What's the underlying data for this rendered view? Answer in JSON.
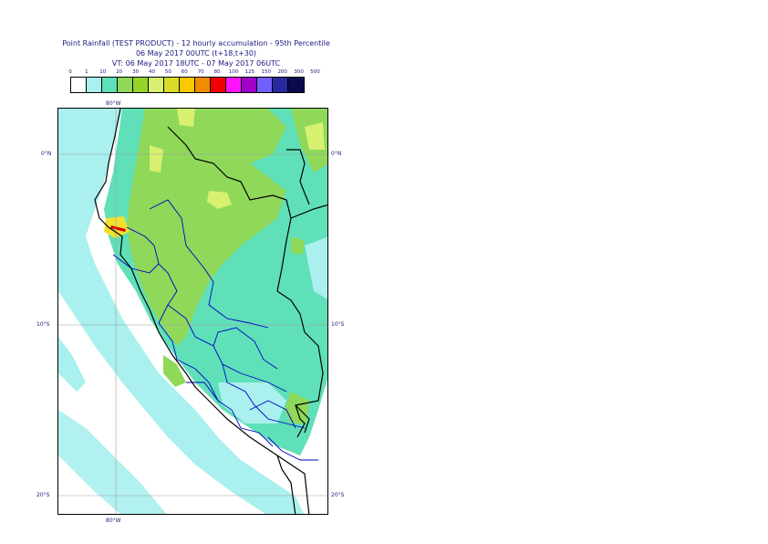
{
  "title": {
    "line1": "Point Rainfall (TEST PRODUCT) - 12 hourly accumulation - 95th Percentile",
    "line2": "06 May 2017 00UTC (t+18,t+30)",
    "line3": "VT: 06 May 2017 18UTC - 07 May 2017 06UTC"
  },
  "legend": {
    "ticks": [
      "0",
      "1",
      "10",
      "20",
      "30",
      "40",
      "50",
      "60",
      "70",
      "80",
      "100",
      "125",
      "150",
      "200",
      "300",
      "500"
    ],
    "colors": [
      "#ffffff",
      "#a9f0ee",
      "#5fe0b8",
      "#8fd85a",
      "#96d428",
      "#d8f070",
      "#d8dc28",
      "#f8c800",
      "#f08c00",
      "#f00000",
      "#ff14ff",
      "#a000c8",
      "#7060ff",
      "#2828a0",
      "#0a0a50"
    ]
  },
  "map": {
    "lat_labels_left": [
      "0°N",
      "10°S",
      "20°S"
    ],
    "lat_labels_right": [
      "0°N",
      "10°S",
      "20°S"
    ],
    "lon_label_top": "80°W",
    "lon_label_bottom": "80°W",
    "colors": {
      "ocean_light": "#a9f0ee",
      "land_teal": "#5fe0b8",
      "green": "#8fd85a",
      "yellow_green": "#d8f070",
      "yellow": "#f0e030",
      "red": "#e00000",
      "border_national": "#000000",
      "border_regional": "#0000c8",
      "grid": "#a0a0a0"
    }
  }
}
